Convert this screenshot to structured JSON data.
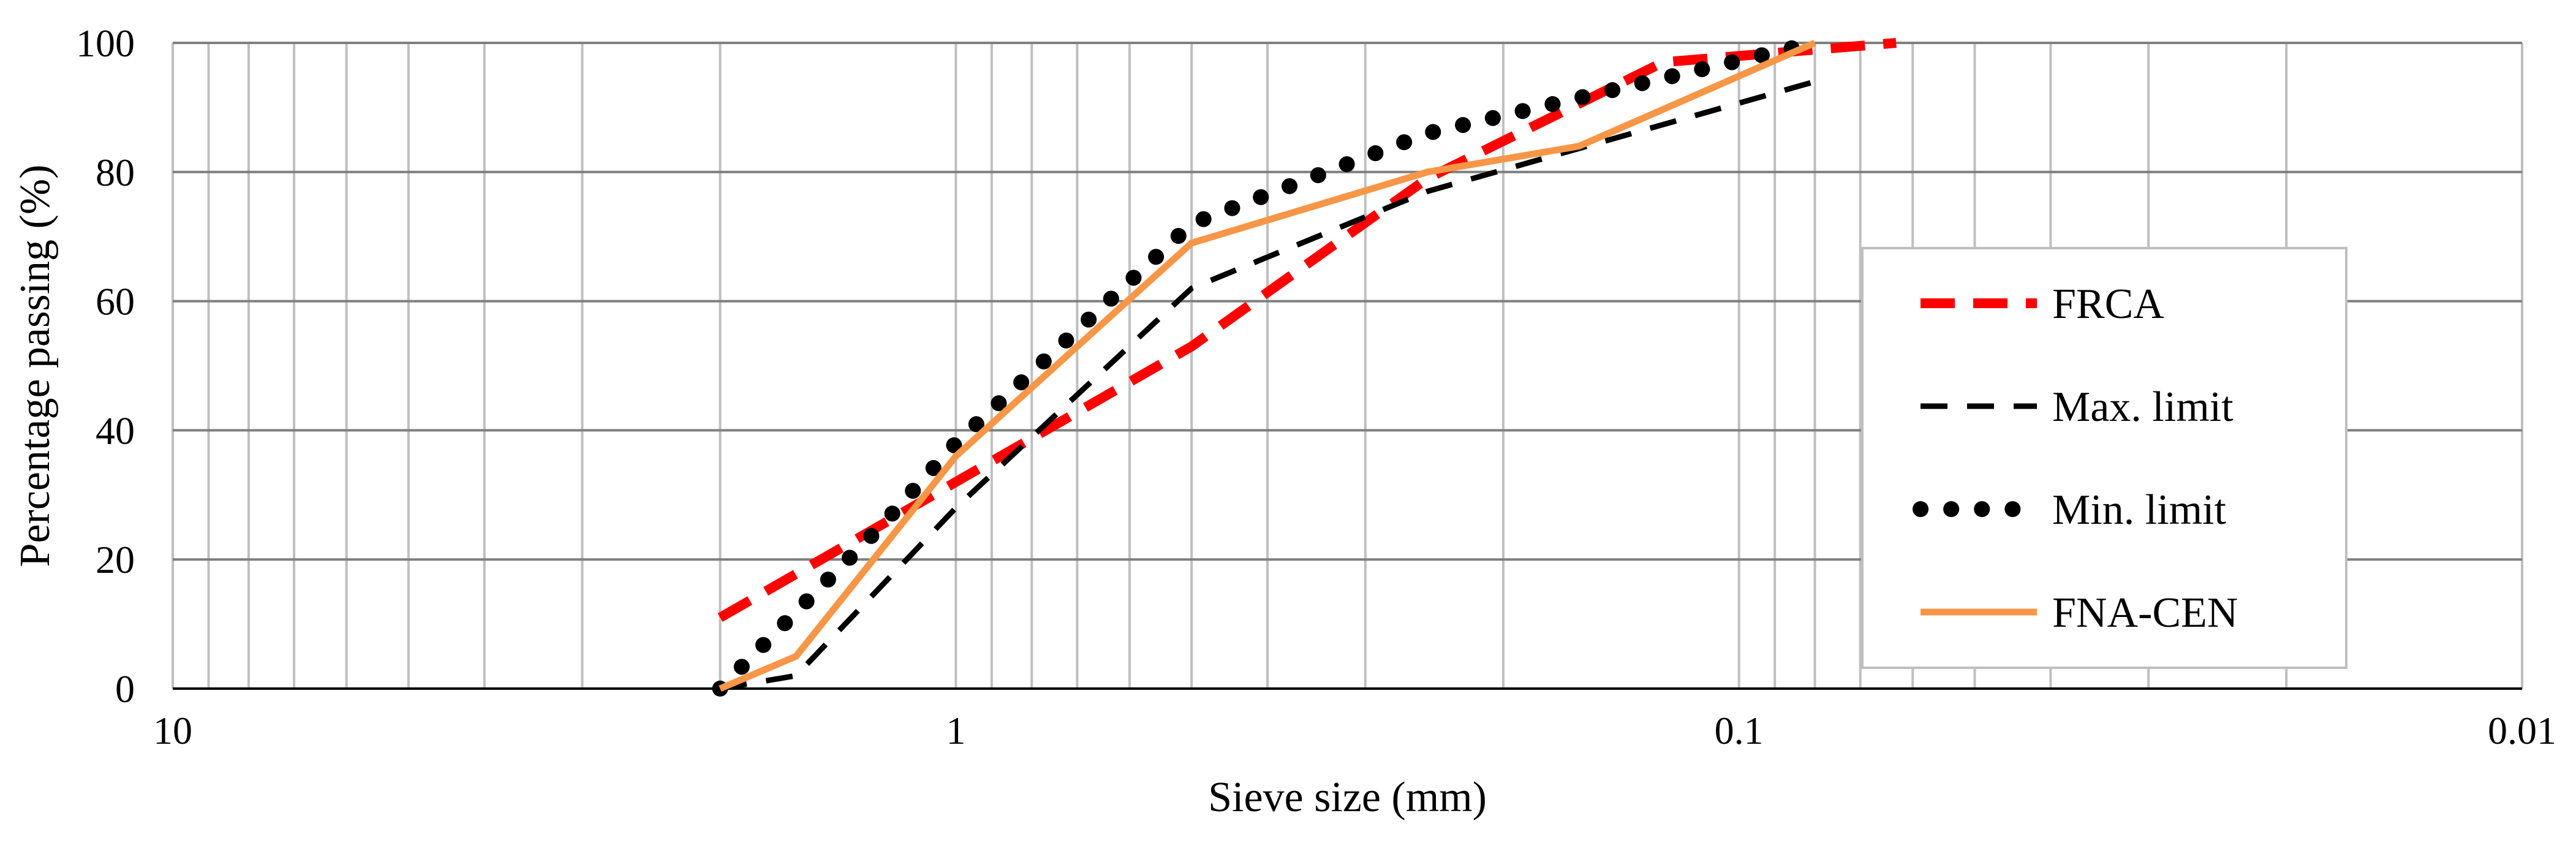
{
  "chart_data": {
    "type": "line",
    "title": "",
    "xlabel": "Sieve size (mm)",
    "ylabel": "Percentage passing  (%)",
    "x_scale": "log",
    "x_reversed": true,
    "xlim": [
      10,
      0.01
    ],
    "ylim": [
      0,
      100
    ],
    "x_tick_labels": [
      "10",
      "1",
      "0.1",
      "0.01"
    ],
    "x_tick_values": [
      10,
      1,
      0.1,
      0.01
    ],
    "y_tick_labels": [
      "0",
      "20",
      "40",
      "60",
      "80",
      "100"
    ],
    "y_tick_values": [
      0,
      20,
      40,
      60,
      80,
      100
    ],
    "grid": true,
    "legend_position": "right",
    "series": [
      {
        "name": "FRCA",
        "color": "#ff0000",
        "style": "dashed",
        "x": [
          2,
          1,
          0.5,
          0.25,
          0.125,
          0.063
        ],
        "y": [
          11,
          32,
          53,
          79,
          97,
          100
        ]
      },
      {
        "name": "Max. limit",
        "color": "#000000",
        "style": "dashed",
        "x": [
          2,
          1.6,
          1,
          0.5,
          0.25,
          0.08
        ],
        "y": [
          0,
          2,
          28,
          62,
          77,
          94
        ]
      },
      {
        "name": "Min. limit",
        "color": "#000000",
        "style": "dotted",
        "x": [
          2,
          1.25,
          1,
          0.5,
          0.25,
          0.08
        ],
        "y": [
          0,
          25,
          38,
          72,
          86,
          100
        ]
      },
      {
        "name": "FNA-CEN",
        "color": "#f79646",
        "style": "solid",
        "x": [
          2,
          1.6,
          1,
          0.5,
          0.25,
          0.16,
          0.08
        ],
        "y": [
          0,
          5,
          36,
          69,
          80,
          84,
          100
        ]
      }
    ]
  }
}
